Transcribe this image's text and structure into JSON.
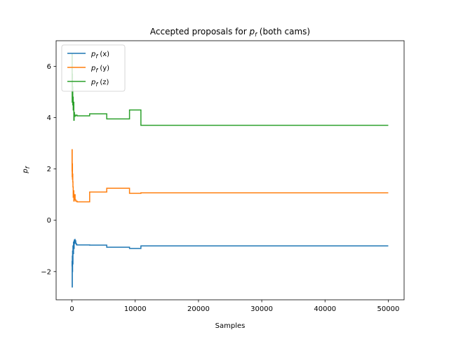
{
  "chart_data": {
    "type": "line",
    "title": "Accepted proposals for p_f (both cams)",
    "xlabel": "Samples",
    "ylabel": "p_f",
    "xlim": [
      -2500,
      52500
    ],
    "ylim": [
      -3.1,
      7.0
    ],
    "xticks": [
      0,
      10000,
      20000,
      30000,
      40000,
      50000
    ],
    "xtick_labels": [
      "0",
      "10000",
      "20000",
      "30000",
      "40000",
      "50000"
    ],
    "yticks": [
      -2,
      0,
      2,
      4,
      6
    ],
    "ytick_labels": [
      "−2",
      "0",
      "2",
      "4",
      "6"
    ],
    "grid": false,
    "legend_position": "top-left",
    "series": [
      {
        "name": "p_f (x)",
        "label_main": "p",
        "label_sub": "f",
        "label_rest": " (x)",
        "color": "#1f77b4",
        "step": true,
        "x": [
          0,
          20,
          40,
          60,
          80,
          100,
          130,
          160,
          200,
          250,
          300,
          350,
          400,
          450,
          500,
          600,
          700,
          800,
          2800,
          5500,
          9100,
          10900,
          50000
        ],
        "y": [
          -1.8,
          -1.6,
          -2.6,
          -1.4,
          -2.0,
          -1.2,
          -1.7,
          -1.0,
          -1.3,
          -0.85,
          -1.1,
          -0.78,
          -0.9,
          -0.75,
          -0.8,
          -0.9,
          -0.95,
          -0.96,
          -0.97,
          -1.05,
          -1.1,
          -1.0,
          -1.0
        ]
      },
      {
        "name": "p_f (y)",
        "label_main": "p",
        "label_sub": "f",
        "label_rest": " (y)",
        "color": "#ff7f0e",
        "step": true,
        "x": [
          0,
          20,
          40,
          60,
          80,
          100,
          130,
          160,
          200,
          250,
          300,
          350,
          400,
          450,
          500,
          600,
          800,
          2800,
          5500,
          9100,
          10900,
          50000
        ],
        "y": [
          1.9,
          2.75,
          1.7,
          2.2,
          1.6,
          1.8,
          1.5,
          1.3,
          0.9,
          1.15,
          0.75,
          0.95,
          0.8,
          1.0,
          0.8,
          0.75,
          0.72,
          1.1,
          1.25,
          1.05,
          1.07,
          1.07
        ]
      },
      {
        "name": "p_f (z)",
        "label_main": "p",
        "label_sub": "f",
        "label_rest": " (z)",
        "color": "#2ca02c",
        "step": true,
        "x": [
          0,
          20,
          40,
          60,
          80,
          100,
          130,
          160,
          200,
          250,
          300,
          350,
          400,
          450,
          500,
          600,
          800,
          2800,
          5500,
          9100,
          10900,
          50000
        ],
        "y": [
          5.2,
          6.5,
          4.6,
          5.7,
          4.6,
          5.2,
          4.5,
          4.8,
          4.3,
          4.6,
          3.9,
          4.2,
          4.1,
          4.05,
          4.08,
          4.1,
          4.07,
          4.15,
          3.95,
          4.3,
          3.7,
          3.7
        ]
      }
    ]
  }
}
